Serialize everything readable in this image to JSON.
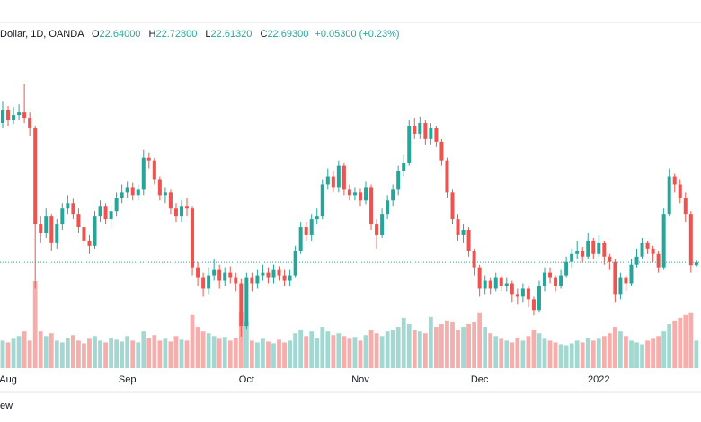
{
  "chart_data": {
    "type": "candlestick",
    "header": {
      "symbol": "Dollar, 1D, OANDA",
      "open_label": "O",
      "open": "22.64000",
      "high_label": "H",
      "high": "22.72800",
      "low_label": "L",
      "low": "22.61320",
      "close_label": "C",
      "close": "22.69300",
      "change": "+0.05300 (+0.23%)"
    },
    "categories": [
      null,
      "Aug",
      null,
      null,
      null,
      null,
      null,
      null,
      null,
      null,
      null,
      null,
      null,
      null,
      null,
      null,
      null,
      null,
      null,
      null,
      null,
      null,
      null,
      "Sep",
      null,
      null,
      null,
      null,
      null,
      null,
      null,
      null,
      null,
      null,
      null,
      null,
      null,
      null,
      null,
      null,
      null,
      null,
      null,
      null,
      null,
      "Oct",
      null,
      null,
      null,
      null,
      null,
      null,
      null,
      null,
      null,
      null,
      null,
      null,
      null,
      null,
      null,
      null,
      null,
      null,
      null,
      null,
      "Nov",
      null,
      null,
      null,
      null,
      null,
      null,
      null,
      null,
      null,
      null,
      null,
      null,
      null,
      null,
      null,
      null,
      null,
      null,
      null,
      null,
      null,
      "Dec",
      null,
      null,
      null,
      null,
      null,
      null,
      null,
      null,
      null,
      null,
      null,
      null,
      null,
      null,
      null,
      null,
      null,
      null,
      null,
      null,
      null,
      "2022",
      null,
      null,
      null,
      null,
      null,
      null,
      null,
      null,
      null,
      null,
      null,
      null,
      null,
      null,
      null,
      null,
      null,
      null
    ],
    "open": [
      25.3,
      25.55,
      25.35,
      25.45,
      25.5,
      25.4,
      25.2,
      23.4,
      23.25,
      23.55,
      23.05,
      23.4,
      23.7,
      23.8,
      23.6,
      23.35,
      23.1,
      23.0,
      23.55,
      23.75,
      23.5,
      23.65,
      23.9,
      24.0,
      24.1,
      23.95,
      24.05,
      24.65,
      24.6,
      24.25,
      23.95,
      24.0,
      23.7,
      23.55,
      23.75,
      23.7,
      22.6,
      22.4,
      22.2,
      22.45,
      22.55,
      22.35,
      22.5,
      22.4,
      22.3,
      21.5,
      22.4,
      22.3,
      22.45,
      22.5,
      22.4,
      22.55,
      22.45,
      22.35,
      22.45,
      22.9,
      23.35,
      23.2,
      23.5,
      23.55,
      24.15,
      24.3,
      24.1,
      24.5,
      24.05,
      23.95,
      24.0,
      23.85,
      24.1,
      23.4,
      23.2,
      23.6,
      23.85,
      24.05,
      24.4,
      24.55,
      25.25,
      25.1,
      25.3,
      25.0,
      25.2,
      24.95,
      24.6,
      24.0,
      23.5,
      23.2,
      23.3,
      22.9,
      22.6,
      22.2,
      22.35,
      22.2,
      22.4,
      22.25,
      22.3,
      22.1,
      22.05,
      22.2,
      22.0,
      21.8,
      22.25,
      22.5,
      22.4,
      22.25,
      22.45,
      22.7,
      22.85,
      22.9,
      22.8,
      23.1,
      22.85,
      23.05,
      22.8,
      22.7,
      22.1,
      22.4,
      22.3,
      22.65,
      22.8,
      23.05,
      22.95,
      22.85,
      22.6,
      23.6,
      24.3,
      24.15,
      23.9,
      23.6,
      22.64
    ],
    "high": [
      25.7,
      25.62,
      25.6,
      25.65,
      26.04,
      25.5,
      25.25,
      23.55,
      23.7,
      23.6,
      23.5,
      23.8,
      23.95,
      23.88,
      23.7,
      23.45,
      23.2,
      23.65,
      23.85,
      23.8,
      23.75,
      24.0,
      24.15,
      24.2,
      24.18,
      24.15,
      24.8,
      24.75,
      24.65,
      24.3,
      24.1,
      24.05,
      23.8,
      23.85,
      23.9,
      23.75,
      22.7,
      22.5,
      22.6,
      22.75,
      22.65,
      22.6,
      22.62,
      22.5,
      22.38,
      22.5,
      22.5,
      22.55,
      22.65,
      22.6,
      22.65,
      22.62,
      22.55,
      22.55,
      23.0,
      23.45,
      23.45,
      23.6,
      23.7,
      24.25,
      24.45,
      24.4,
      24.6,
      24.55,
      24.15,
      24.1,
      24.08,
      24.2,
      24.15,
      23.5,
      23.7,
      23.95,
      24.15,
      24.5,
      24.7,
      25.35,
      25.4,
      25.42,
      25.35,
      25.3,
      25.25,
      25.0,
      24.65,
      24.05,
      23.6,
      23.4,
      23.35,
      22.95,
      22.65,
      22.45,
      22.4,
      22.5,
      22.45,
      22.4,
      22.35,
      22.2,
      22.3,
      22.25,
      22.05,
      22.35,
      22.6,
      22.6,
      22.45,
      22.55,
      22.8,
      22.95,
      23.1,
      22.98,
      23.25,
      23.15,
      23.2,
      23.1,
      22.85,
      22.75,
      22.5,
      22.45,
      22.75,
      22.95,
      23.15,
      23.1,
      23.0,
      22.9,
      23.7,
      24.45,
      24.35,
      24.25,
      24.0,
      23.65,
      22.728
    ],
    "low": [
      25.2,
      25.25,
      25.28,
      25.35,
      25.3,
      25.05,
      22.2,
      23.05,
      23.15,
      22.9,
      22.95,
      23.3,
      23.6,
      23.5,
      23.25,
      22.95,
      22.85,
      22.95,
      23.45,
      23.4,
      23.35,
      23.55,
      23.8,
      23.9,
      23.85,
      23.85,
      23.95,
      24.45,
      24.15,
      23.85,
      23.8,
      23.6,
      23.45,
      23.45,
      23.55,
      22.45,
      22.25,
      22.05,
      22.1,
      22.35,
      22.2,
      22.25,
      22.3,
      22.15,
      21.3,
      21.45,
      22.15,
      22.2,
      22.35,
      22.3,
      22.3,
      22.35,
      22.25,
      22.25,
      22.4,
      22.85,
      23.1,
      23.1,
      23.4,
      23.5,
      24.05,
      24.0,
      24.0,
      23.95,
      23.85,
      23.85,
      23.75,
      23.78,
      23.3,
      22.95,
      23.15,
      23.5,
      23.75,
      23.95,
      24.3,
      24.5,
      25.0,
      25.0,
      24.9,
      24.9,
      24.85,
      24.5,
      23.9,
      23.4,
      23.1,
      23.05,
      22.8,
      22.45,
      22.05,
      22.1,
      22.1,
      22.15,
      22.15,
      22.15,
      21.95,
      21.9,
      21.95,
      21.85,
      21.7,
      21.75,
      22.15,
      22.3,
      22.15,
      22.2,
      22.4,
      22.6,
      22.75,
      22.7,
      22.75,
      22.75,
      22.8,
      22.65,
      22.55,
      21.95,
      22.0,
      22.15,
      22.25,
      22.6,
      22.75,
      22.85,
      22.7,
      22.5,
      22.55,
      23.55,
      24.0,
      23.8,
      23.45,
      22.5,
      22.6132
    ],
    "close": [
      25.55,
      25.35,
      25.45,
      25.5,
      25.4,
      25.2,
      23.4,
      23.25,
      23.55,
      23.05,
      23.4,
      23.7,
      23.8,
      23.6,
      23.35,
      23.1,
      23.0,
      23.55,
      23.75,
      23.5,
      23.65,
      23.9,
      24.0,
      24.1,
      23.95,
      24.05,
      24.65,
      24.6,
      24.25,
      23.95,
      24.0,
      23.7,
      23.55,
      23.75,
      23.7,
      22.6,
      22.4,
      22.2,
      22.45,
      22.55,
      22.35,
      22.5,
      22.4,
      22.3,
      21.5,
      22.4,
      22.3,
      22.45,
      22.5,
      22.4,
      22.55,
      22.45,
      22.35,
      22.45,
      22.9,
      23.35,
      23.2,
      23.5,
      23.55,
      24.15,
      24.3,
      24.1,
      24.5,
      24.05,
      23.95,
      24.0,
      23.85,
      24.1,
      23.4,
      23.2,
      23.6,
      23.85,
      24.05,
      24.4,
      24.55,
      25.25,
      25.1,
      25.3,
      25.0,
      25.2,
      24.95,
      24.6,
      24.0,
      23.5,
      23.2,
      23.3,
      22.9,
      22.6,
      22.2,
      22.35,
      22.2,
      22.4,
      22.25,
      22.3,
      22.1,
      22.05,
      22.2,
      22.0,
      21.8,
      22.25,
      22.5,
      22.4,
      22.25,
      22.45,
      22.7,
      22.85,
      22.9,
      22.8,
      23.1,
      22.85,
      23.05,
      22.8,
      22.7,
      22.1,
      22.4,
      22.3,
      22.65,
      22.8,
      23.05,
      22.95,
      22.85,
      22.6,
      23.6,
      24.3,
      24.15,
      23.9,
      23.6,
      22.64,
      22.693
    ],
    "volume": [
      30,
      28,
      32,
      35,
      40,
      30,
      95,
      40,
      35,
      38,
      30,
      28,
      33,
      36,
      30,
      27,
      32,
      35,
      30,
      28,
      33,
      31,
      29,
      35,
      30,
      28,
      40,
      33,
      36,
      30,
      32,
      29,
      35,
      31,
      30,
      58,
      45,
      40,
      38,
      35,
      32,
      34,
      30,
      33,
      62,
      50,
      30,
      28,
      32,
      29,
      27,
      31,
      28,
      30,
      38,
      42,
      35,
      40,
      33,
      45,
      40,
      36,
      38,
      35,
      32,
      34,
      30,
      36,
      42,
      38,
      35,
      40,
      42,
      45,
      55,
      48,
      42,
      40,
      38,
      56,
      45,
      48,
      52,
      50,
      42,
      45,
      48,
      50,
      60,
      45,
      38,
      35,
      32,
      30,
      28,
      33,
      30,
      35,
      42,
      38,
      32,
      30,
      28,
      26,
      25,
      27,
      30,
      28,
      33,
      30,
      32,
      35,
      38,
      45,
      40,
      35,
      30,
      28,
      26,
      30,
      32,
      35,
      40,
      48,
      52,
      55,
      58,
      60,
      30
    ],
    "up_color": "#26a69a",
    "down_color": "#ef5350",
    "volume_up_color": "#a3d8d2",
    "volume_down_color": "#f5aeac",
    "bottom_text": "ew"
  }
}
